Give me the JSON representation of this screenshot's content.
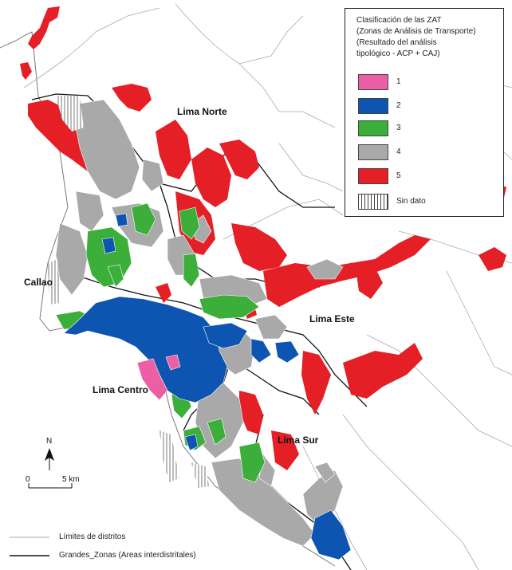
{
  "legend": {
    "title_lines": [
      "Clasificación de las ZAT",
      "(Zonas de Análisis de Transporte)",
      "(Resultado del análisis",
      "tipológico - ACP + CAJ)"
    ],
    "items": [
      {
        "label": "1",
        "color": "#ec5fa4"
      },
      {
        "label": "2",
        "color": "#0d55b0"
      },
      {
        "label": "3",
        "color": "#3cae3a"
      },
      {
        "label": "4",
        "color": "#a9a9a9"
      },
      {
        "label": "5",
        "color": "#e41f26"
      },
      {
        "label": "Sin dato",
        "color": "hatched"
      }
    ]
  },
  "zones": {
    "lima_norte": "Lima Norte",
    "callao": "Callao",
    "lima_este": "Lima Este",
    "lima_centro": "Lima Centro",
    "lima_sur": "Lima Sur"
  },
  "scale": {
    "north": "N",
    "zero": "0",
    "distance": "5 km"
  },
  "bottom_legend": {
    "district_limits": "Límites de distritos",
    "big_zones": "Grandes_Zonas (Areas interdistritales)"
  }
}
